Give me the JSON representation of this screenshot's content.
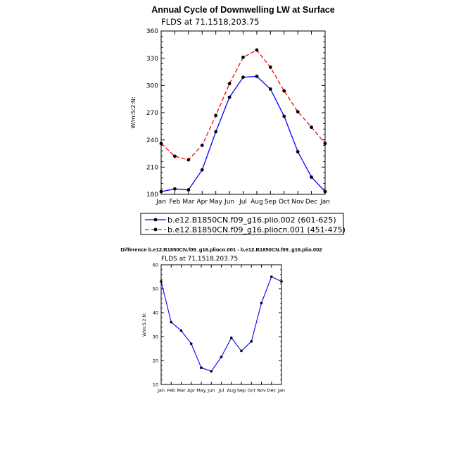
{
  "chart_data": [
    {
      "type": "line",
      "title": "Annual Cycle of Downwelling LW at Surface",
      "subtitle": "FLDS at 71.1518,203.75",
      "xlabel": "",
      "ylabel": "W/m:S:2:N:",
      "categories": [
        "Jan",
        "Feb",
        "Mar",
        "Apr",
        "May",
        "Jun",
        "Jul",
        "Aug",
        "Sep",
        "Oct",
        "Nov",
        "Dec",
        "Jan"
      ],
      "ylim": [
        180,
        360
      ],
      "yticks": [
        180,
        210,
        240,
        270,
        300,
        330,
        360
      ],
      "legend_position": "bottom",
      "series": [
        {
          "name": "b.e12.B1850CN.f09_g16.plio.002 (601-625)",
          "color": "#0000ff",
          "dash": "solid",
          "values": [
            183,
            186,
            185,
            207,
            249,
            287,
            309,
            310,
            296,
            266,
            227,
            199,
            183
          ]
        },
        {
          "name": "b.e12.B1850CN.f09_g16.pliocn.001 (451-475)",
          "color": "#ff0000",
          "dash": "dashed",
          "values": [
            236,
            222,
            218,
            234,
            267,
            302,
            331,
            339,
            320,
            294,
            271,
            254,
            236
          ]
        }
      ]
    },
    {
      "type": "line",
      "title": "Difference b.e12.B1850CN.f09_g16.pliocn.001 - b.e12.B1850CN.f09_g16.plio.002",
      "subtitle": "FLDS at 71.1518,203.75",
      "xlabel": "",
      "ylabel": "W/m:S:2:N:",
      "categories": [
        "Jan",
        "Feb",
        "Mar",
        "Apr",
        "May",
        "Jun",
        "Jul",
        "Aug",
        "Sep",
        "Oct",
        "Nov",
        "Dec",
        "Jan"
      ],
      "ylim": [
        10,
        60
      ],
      "yticks": [
        10,
        20,
        30,
        40,
        50,
        60
      ],
      "series": [
        {
          "name": "",
          "color": "#0000ff",
          "dash": "solid",
          "values": [
            53,
            36,
            32.5,
            27,
            17,
            15.5,
            21.5,
            29.5,
            24,
            28,
            44,
            55,
            53
          ]
        }
      ]
    }
  ]
}
